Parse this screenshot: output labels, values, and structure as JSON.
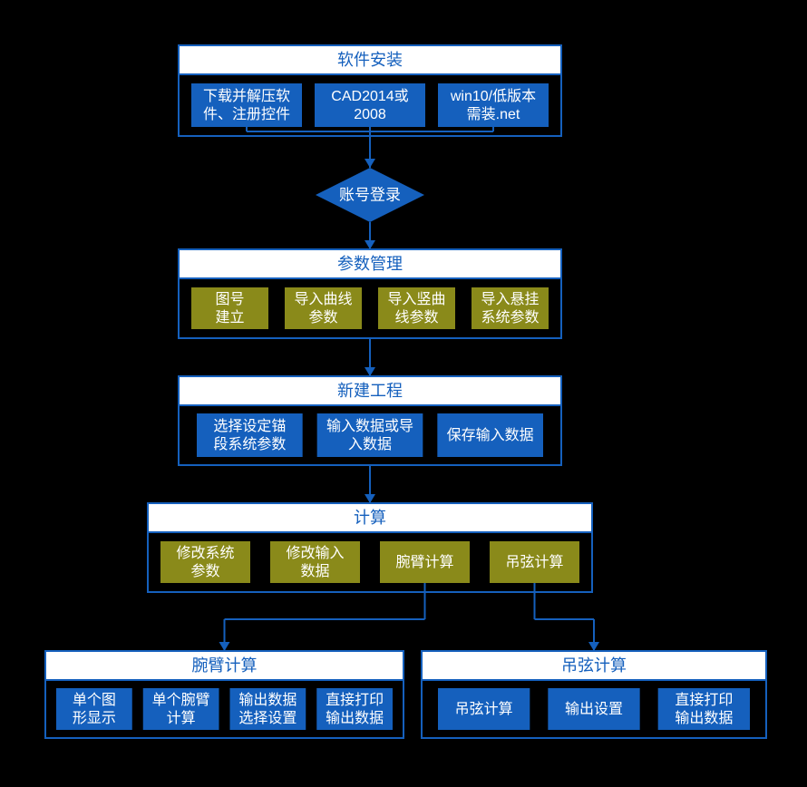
{
  "diagram": {
    "type": "flowchart",
    "background_color": "#000000",
    "titlebar_fill": "#ffffff",
    "title_text_color": "#1560bd",
    "border_color": "#1560bd",
    "sub_blue_fill": "#1560bd",
    "sub_olive_fill": "#8a8a1a",
    "sub_text_color": "#ffffff",
    "connector_color": "#1560bd",
    "font_title_size": 18,
    "font_sub_size": 16
  },
  "box1": {
    "title": "软件安装",
    "items": [
      {
        "l1": "下载并解压软",
        "l2": "件、注册控件"
      },
      {
        "l1": "CAD2014或",
        "l2": "2008"
      },
      {
        "l1": "win10/低版本",
        "l2": "需装.net"
      }
    ]
  },
  "diamond": {
    "label": "账号登录"
  },
  "box2": {
    "title": "参数管理",
    "items": [
      {
        "l1": "图号",
        "l2": "建立"
      },
      {
        "l1": "导入曲线",
        "l2": "参数"
      },
      {
        "l1": "导入竖曲",
        "l2": "线参数"
      },
      {
        "l1": "导入悬挂",
        "l2": "系统参数"
      }
    ]
  },
  "box3": {
    "title": "新建工程",
    "items": [
      {
        "l1": "选择设定锚",
        "l2": "段系统参数"
      },
      {
        "l1": "输入数据或导",
        "l2": "入数据"
      },
      {
        "l1": "保存输入数据",
        "l2": ""
      }
    ]
  },
  "box4": {
    "title": "计算",
    "items": [
      {
        "l1": "修改系统",
        "l2": "参数"
      },
      {
        "l1": "修改输入",
        "l2": "数据"
      },
      {
        "l1": "腕臂计算",
        "l2": ""
      },
      {
        "l1": "吊弦计算",
        "l2": ""
      }
    ]
  },
  "box5": {
    "title": "腕臂计算",
    "items": [
      {
        "l1": "单个图",
        "l2": "形显示"
      },
      {
        "l1": "单个腕臂",
        "l2": "计算"
      },
      {
        "l1": "输出数据",
        "l2": "选择设置"
      },
      {
        "l1": "直接打印",
        "l2": "输出数据"
      }
    ]
  },
  "box6": {
    "title": "吊弦计算",
    "items": [
      {
        "l1": "吊弦计算",
        "l2": ""
      },
      {
        "l1": "输出设置",
        "l2": ""
      },
      {
        "l1": "直接打印",
        "l2": "输出数据"
      }
    ]
  }
}
